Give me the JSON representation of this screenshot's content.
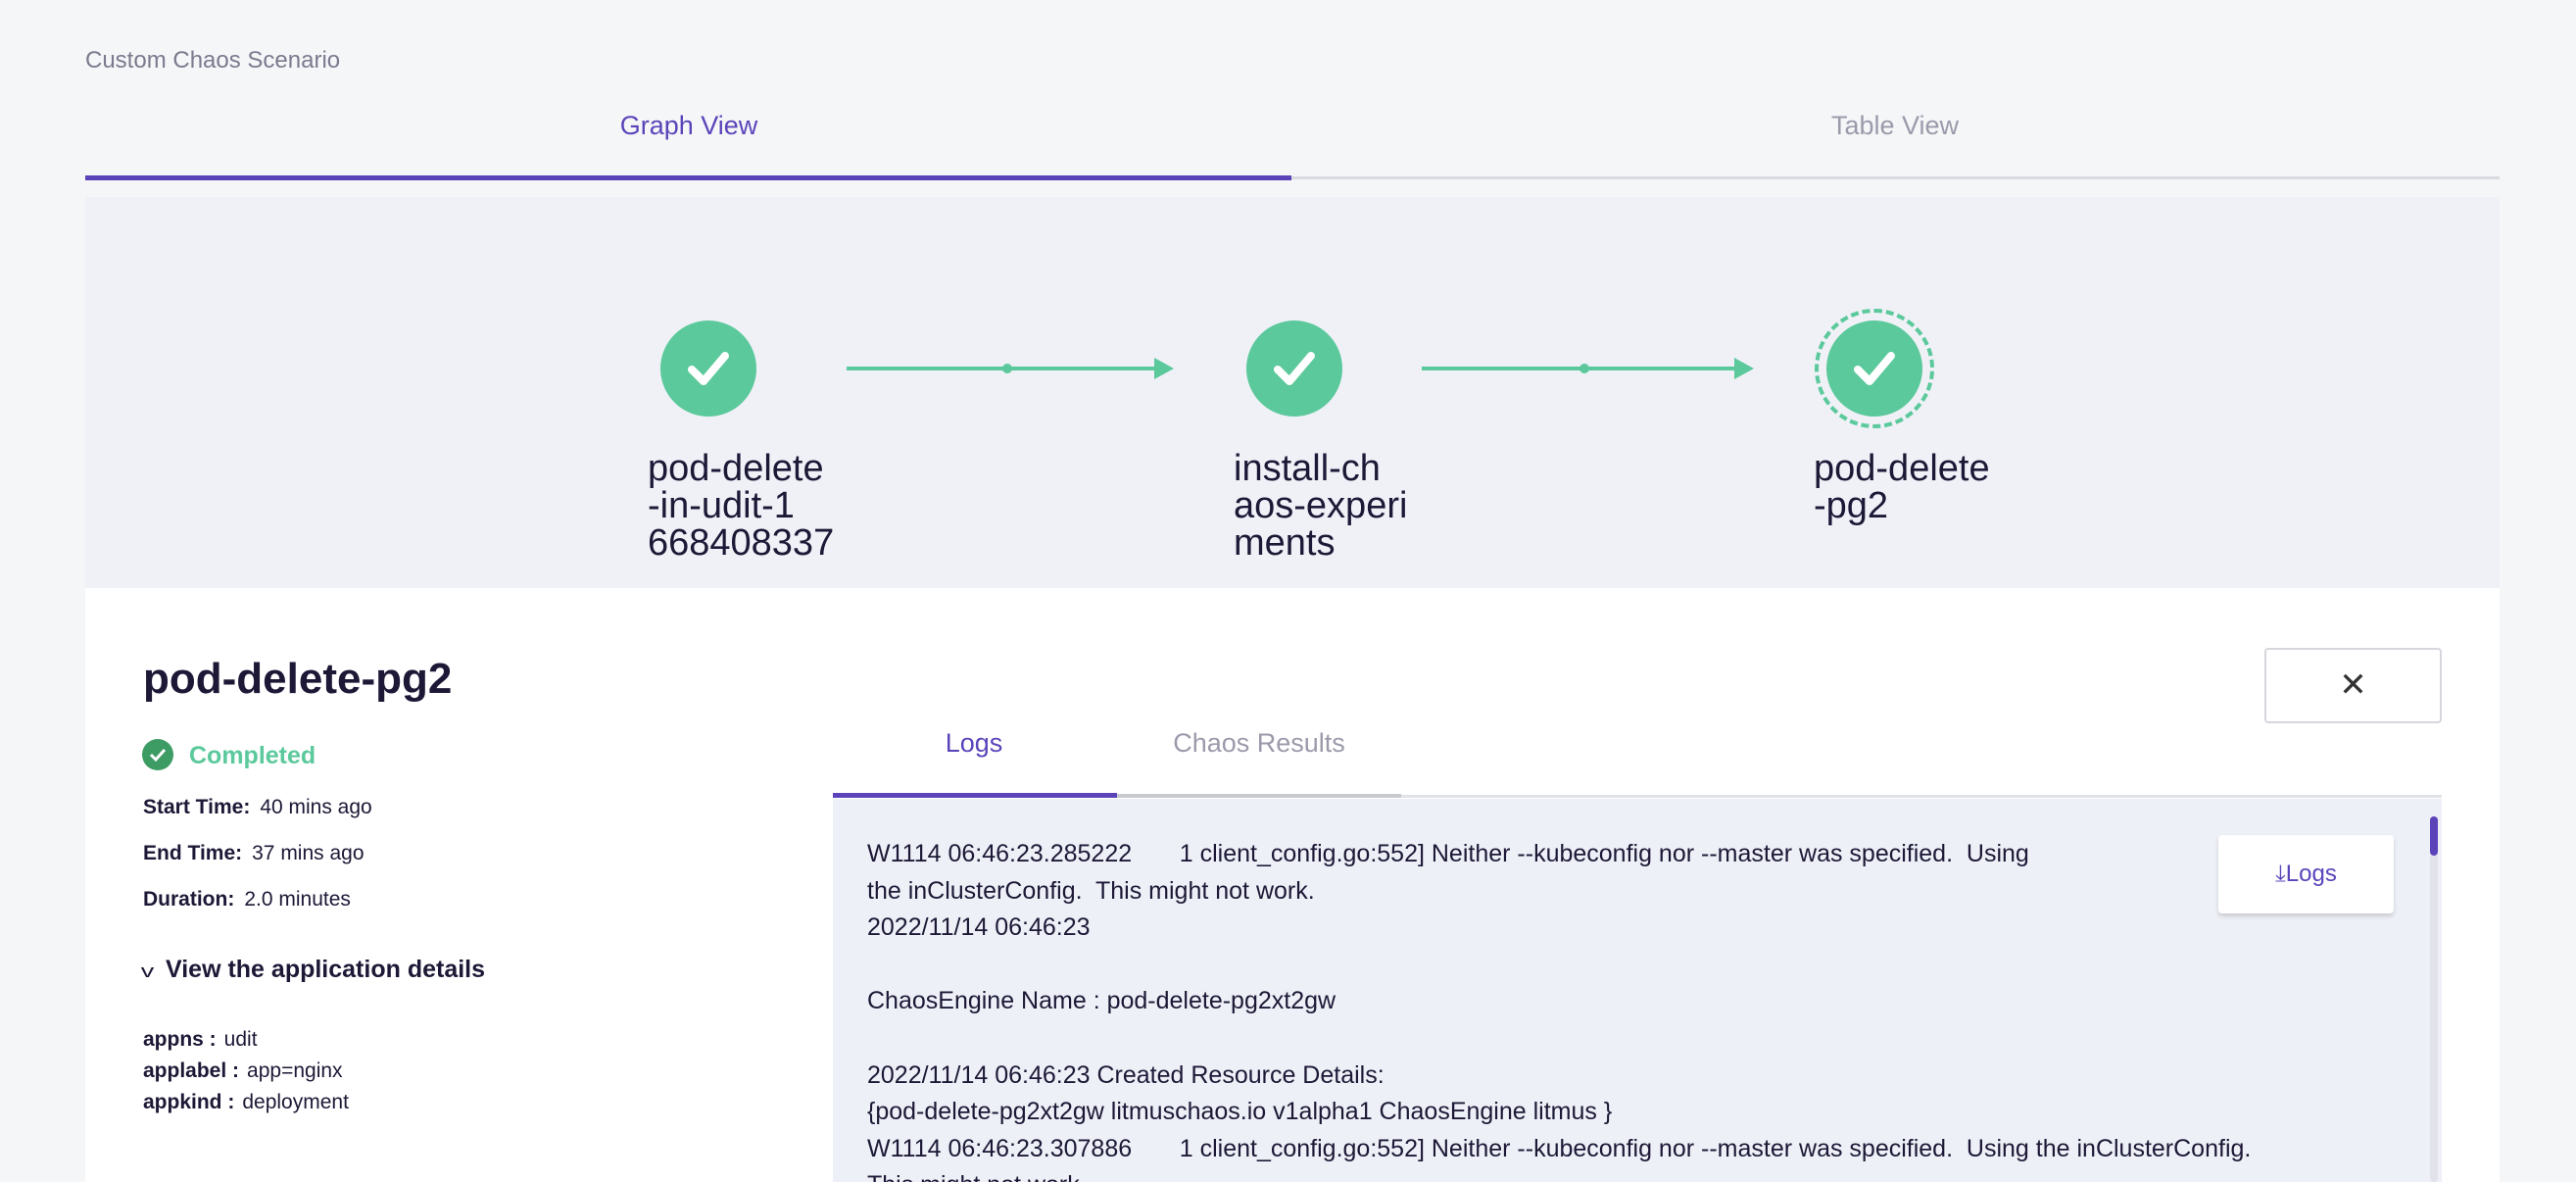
{
  "breadcrumb": "Custom Chaos Scenario",
  "view_tabs": {
    "graph": "Graph View",
    "table": "Table View",
    "active": "graph"
  },
  "colors": {
    "accent": "#5b44ba",
    "success": "#5bc99b",
    "success_dark": "#3d9c63"
  },
  "graph": {
    "nodes": [
      {
        "label": "pod-delete\n-in-udit-1\n668408337",
        "status": "succeeded",
        "icon": "check-icon",
        "selected": false
      },
      {
        "label": "install-ch\naos-experi\nments",
        "status": "succeeded",
        "icon": "check-icon",
        "selected": false
      },
      {
        "label": "pod-delete\n-pg2",
        "status": "succeeded",
        "icon": "check-icon",
        "selected": true
      }
    ]
  },
  "details": {
    "title": "pod-delete-pg2",
    "close_label": "✕",
    "status": "Completed",
    "start_label": "Start Time:",
    "start_value": "40 mins ago",
    "end_label": "End Time:",
    "end_value": "37 mins ago",
    "duration_label": "Duration:",
    "duration_value": "2.0 minutes",
    "app_toggle": "View the application details",
    "app": [
      {
        "key": "appns :",
        "value": "udit"
      },
      {
        "key": "applabel :",
        "value": "app=nginx"
      },
      {
        "key": "appkind :",
        "value": "deployment"
      }
    ]
  },
  "log_tabs": {
    "logs": "Logs",
    "results": "Chaos Results",
    "active": "logs"
  },
  "download_logs": "Logs",
  "logs": "W1114 06:46:23.285222       1 client_config.go:552] Neither --kubeconfig nor --master was specified.  Using\nthe inClusterConfig.  This might not work.\n2022/11/14 06:46:23\n\nChaosEngine Name : pod-delete-pg2xt2gw\n\n2022/11/14 06:46:23 Created Resource Details:\n{pod-delete-pg2xt2gw litmuschaos.io v1alpha1 ChaosEngine litmus }\nW1114 06:46:23.307886       1 client_config.go:552] Neither --kubeconfig nor --master was specified.  Using the inClusterConfig.\nThis might not work."
}
